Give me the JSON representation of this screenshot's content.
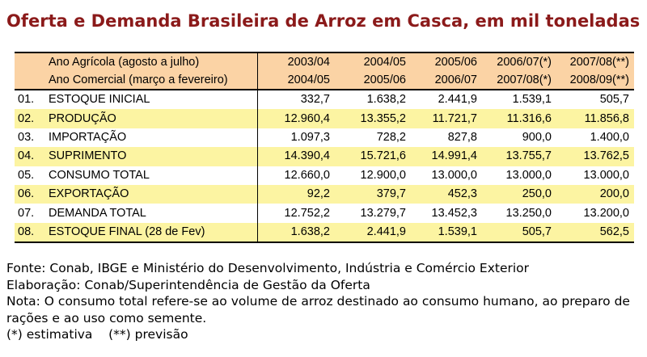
{
  "title": "Oferta e Demanda Brasileira de Arroz em Casca, em mil toneladas",
  "table": {
    "header_rows": [
      {
        "label": "Ano Agrícola (agosto a julho)",
        "values": [
          "2003/04",
          "2004/05",
          "2005/06",
          "2006/07(*)",
          "2007/08(**)"
        ]
      },
      {
        "label": "Ano Comercial (março a fevereiro)",
        "values": [
          "2004/05",
          "2005/06",
          "2006/07",
          "2007/08(*)",
          "2008/09(**)"
        ]
      }
    ],
    "rows": [
      {
        "num": "01.",
        "label": "ESTOQUE INICIAL",
        "values": [
          "332,7",
          "1.638,2",
          "2.441,9",
          "1.539,1",
          "505,7"
        ]
      },
      {
        "num": "02.",
        "label": "PRODUÇÃO",
        "values": [
          "12.960,4",
          "13.355,2",
          "11.721,7",
          "11.316,6",
          "11.856,8"
        ]
      },
      {
        "num": "03.",
        "label": "IMPORTAÇÃO",
        "values": [
          "1.097,3",
          "728,2",
          "827,8",
          "900,0",
          "1.400,0"
        ]
      },
      {
        "num": "04.",
        "label": "SUPRIMENTO",
        "values": [
          "14.390,4",
          "15.721,6",
          "14.991,4",
          "13.755,7",
          "13.762,5"
        ]
      },
      {
        "num": "05.",
        "label": "CONSUMO TOTAL",
        "values": [
          "12.660,0",
          "12.900,0",
          "13.000,0",
          "13.000,0",
          "13.000,0"
        ]
      },
      {
        "num": "06.",
        "label": "EXPORTAÇÃO",
        "values": [
          "92,2",
          "379,7",
          "452,3",
          "250,0",
          "200,0"
        ]
      },
      {
        "num": "07.",
        "label": "DEMANDA TOTAL",
        "values": [
          "12.752,2",
          "13.279,7",
          "13.452,3",
          "13.250,0",
          "13.200,0"
        ]
      },
      {
        "num": "08.",
        "label": "ESTOQUE FINAL (28 de Fev)",
        "values": [
          "1.638,2",
          "2.441,9",
          "1.539,1",
          "505,7",
          "562,5"
        ]
      }
    ]
  },
  "notes": {
    "source": "Fonte: Conab, IBGE e Ministério do Desenvolvimento, Indústria e Comércio Exterior",
    "elaboration": "Elaboração: Conab/Superintendência de Gestão da Oferta",
    "note": "Nota: O consumo total refere-se ao volume de arroz destinado ao consumo humano, ao preparo de rações e ao uso como semente.",
    "legend": "(*) estimativa    (**) previsão"
  },
  "colors": {
    "title": "#8b1a1a",
    "header_fill": "#fbd3a5",
    "highlight_fill": "#fcf4a2"
  }
}
